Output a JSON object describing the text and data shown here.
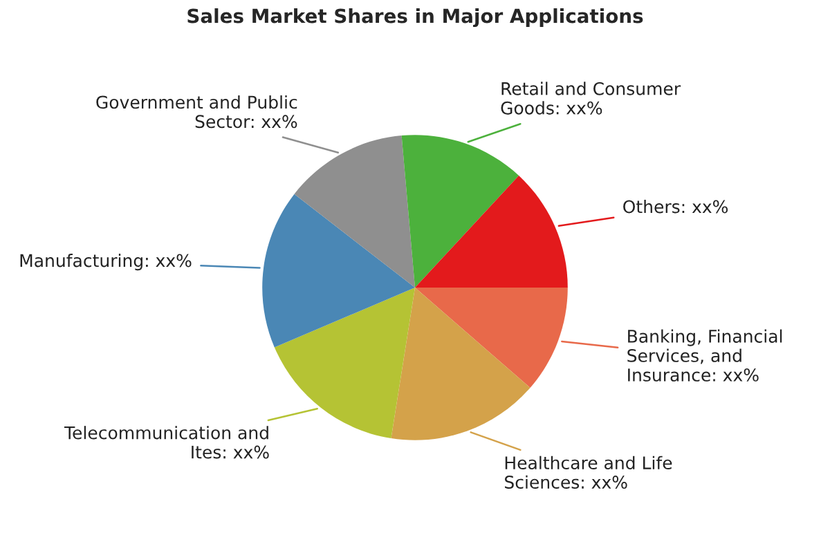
{
  "chart_data": {
    "type": "pie",
    "title": "Sales Market Shares in Major Applications",
    "categories": [
      "Banking, Financial\nServices, and\nInsurance",
      "Healthcare and Life\nSciences",
      "Telecommunication and\nItes",
      "Manufacturing",
      "Government and Public\nSector",
      "Retail and Consumer\nGoods",
      "Others"
    ],
    "values": [
      11.4,
      16.1,
      16.1,
      16.9,
      13.1,
      13.3,
      13.1
    ],
    "value_labels": [
      "xx%",
      "xx%",
      "xx%",
      "xx%",
      "xx%",
      "xx%",
      "xx%"
    ],
    "colors": [
      "#e8694a",
      "#d4a24a",
      "#b5c334",
      "#4a87b5",
      "#8f8f8f",
      "#4cb13c",
      "#e31a1c"
    ],
    "legend": false
  }
}
